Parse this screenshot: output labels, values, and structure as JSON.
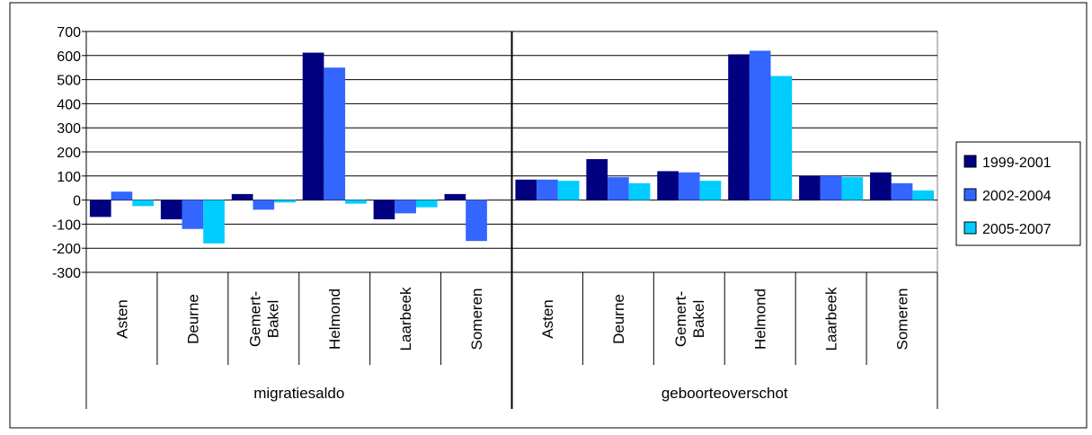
{
  "chart_data": {
    "type": "bar",
    "groups": [
      {
        "label": "migratiesaldo",
        "categories": [
          "Asten",
          "Deurne",
          "Gemert-\nBakel",
          "Helmond",
          "Laarbeek",
          "Someren"
        ]
      },
      {
        "label": "geboorteoverschot",
        "categories": [
          "Asten",
          "Deurne",
          "Gemert-\nBakel",
          "Helmond",
          "Laarbeek",
          "Someren"
        ]
      }
    ],
    "series": [
      {
        "name": "1999-2001",
        "color": "#000080",
        "values": [
          -70,
          -80,
          25,
          612,
          -80,
          25,
          85,
          170,
          120,
          605,
          100,
          115
        ]
      },
      {
        "name": "2002-2004",
        "color": "#3366ff",
        "values": [
          35,
          -120,
          -40,
          550,
          -55,
          -170,
          85,
          95,
          115,
          620,
          100,
          70
        ]
      },
      {
        "name": "2005-2007",
        "color": "#00ccff",
        "values": [
          -25,
          -180,
          -10,
          -15,
          -30,
          0,
          80,
          70,
          80,
          515,
          95,
          40
        ]
      }
    ],
    "ylim": [
      -300,
      700
    ],
    "yticks": [
      "700",
      "600",
      "500",
      "400",
      "300",
      "200",
      "100",
      "0",
      "-100",
      "-200",
      "-300"
    ],
    "grid": true,
    "legend": "right"
  }
}
